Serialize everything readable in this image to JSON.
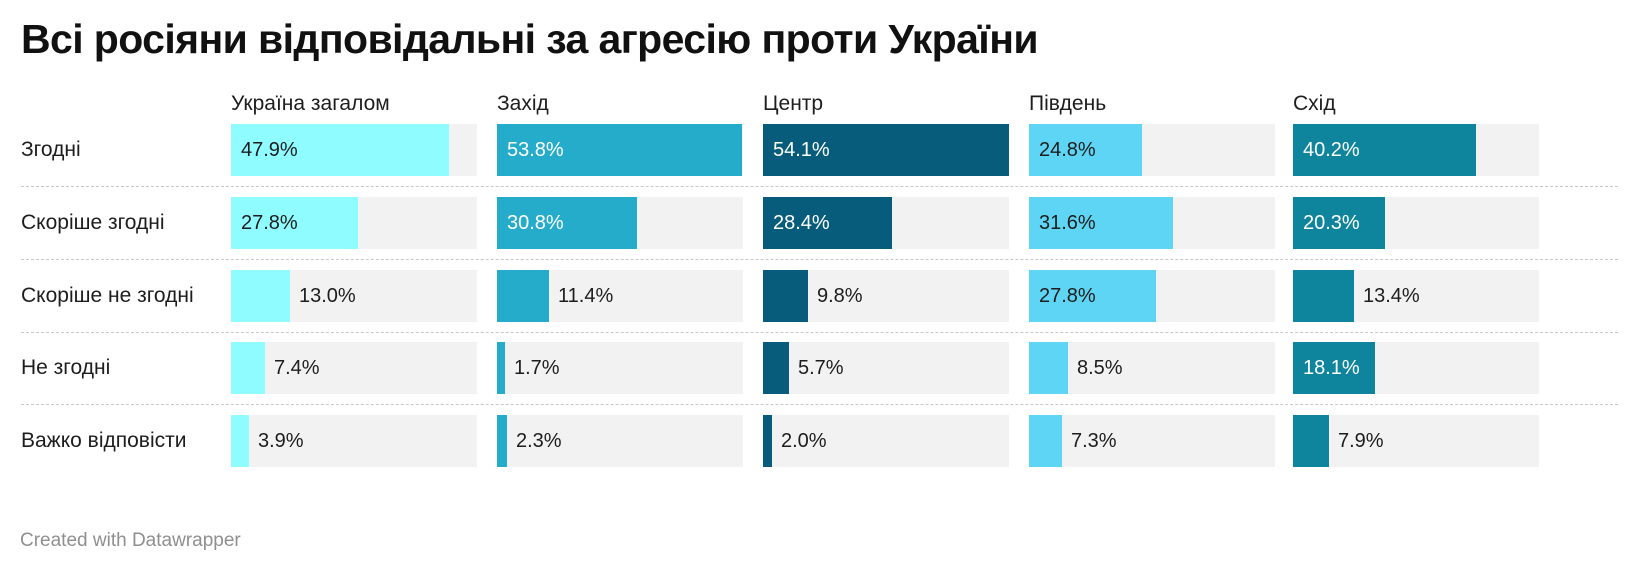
{
  "title": "Всі росіяни відповідальні за агресію проти України",
  "credit": "Created with Datawrapper",
  "chart_data": {
    "type": "bar",
    "title": "Всі росіяни відповідальні за агресію проти України",
    "categories": [
      "Згодні",
      "Скоріше згодні",
      "Скоріше не згодні",
      "Не згодні",
      "Важко відповісти"
    ],
    "xlim": [
      0,
      100
    ],
    "grid": false,
    "series": [
      {
        "name": "Україна загалом",
        "color": "#8ffcff",
        "values": [
          47.9,
          27.8,
          13.0,
          7.4,
          3.9
        ],
        "labels": [
          "47.9%",
          "27.8%",
          "13.0%",
          "7.4%",
          "3.9%"
        ]
      },
      {
        "name": "Захід",
        "color": "#25acca",
        "values": [
          53.8,
          30.8,
          11.4,
          1.7,
          2.3
        ],
        "labels": [
          "53.8%",
          "30.8%",
          "11.4%",
          "1.7%",
          "2.3%"
        ]
      },
      {
        "name": "Центр",
        "color": "#075c7b",
        "values": [
          54.1,
          28.4,
          9.8,
          5.7,
          2.0
        ],
        "labels": [
          "54.1%",
          "28.4%",
          "9.8%",
          "5.7%",
          "2.0%"
        ]
      },
      {
        "name": "Південь",
        "color": "#5ed5f4",
        "values": [
          24.8,
          31.6,
          27.8,
          8.5,
          7.3
        ],
        "labels": [
          "24.8%",
          "31.6%",
          "27.8%",
          "8.5%",
          "7.3%"
        ]
      },
      {
        "name": "Схід",
        "color": "#0f859d",
        "values": [
          40.2,
          20.3,
          13.4,
          18.1,
          7.9
        ],
        "labels": [
          "40.2%",
          "20.3%",
          "13.4%",
          "18.1%",
          "7.9%"
        ]
      }
    ]
  }
}
